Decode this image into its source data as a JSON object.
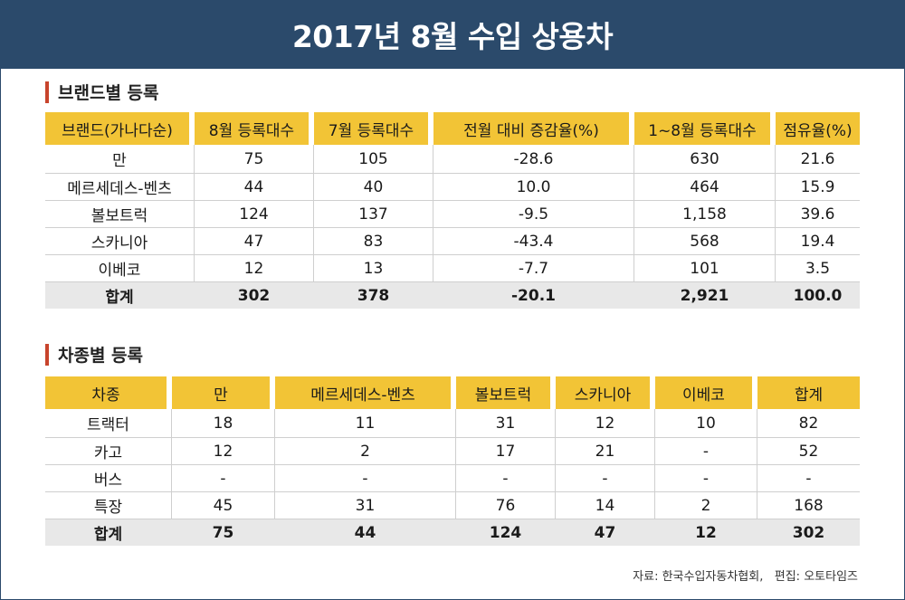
{
  "title": "2017년 8월 수입 상용차",
  "brand_section": {
    "title": "브랜드별 등록",
    "headers": [
      "브랜드(가나다순)",
      "8월 등록대수",
      "7월 등록대수",
      "전월 대비 증감율(%)",
      "1~8월 등록대수",
      "점유율(%)"
    ],
    "rows": [
      [
        "만",
        "75",
        "105",
        "-28.6",
        "630",
        "21.6"
      ],
      [
        "메르세데스-벤츠",
        "44",
        "40",
        "10.0",
        "464",
        "15.9"
      ],
      [
        "볼보트럭",
        "124",
        "137",
        "-9.5",
        "1,158",
        "39.6"
      ],
      [
        "스카니아",
        "47",
        "83",
        "-43.4",
        "568",
        "19.4"
      ],
      [
        "이베코",
        "12",
        "13",
        "-7.7",
        "101",
        "3.5"
      ]
    ],
    "total": [
      "합계",
      "302",
      "378",
      "-20.1",
      "2,921",
      "100.0"
    ]
  },
  "type_section": {
    "title": "차종별 등록",
    "headers": [
      "차종",
      "만",
      "메르세데스-벤츠",
      "볼보트럭",
      "스카니아",
      "이베코",
      "합계"
    ],
    "rows": [
      [
        "트랙터",
        "18",
        "11",
        "31",
        "12",
        "10",
        "82"
      ],
      [
        "카고",
        "12",
        "2",
        "17",
        "21",
        "-",
        "52"
      ],
      [
        "버스",
        "-",
        "-",
        "-",
        "-",
        "-",
        "-"
      ],
      [
        "특장",
        "45",
        "31",
        "76",
        "14",
        "2",
        "168"
      ]
    ],
    "total": [
      "합계",
      "75",
      "44",
      "124",
      "47",
      "12",
      "302"
    ]
  },
  "footer": "자료: 한국수입자동차협회,   편집: 오토타임즈",
  "colors": {
    "banner": "#2b4a6b",
    "header_cell": "#f2c436",
    "section_marker": "#c8442c",
    "total_row": "#e8e8e8"
  }
}
